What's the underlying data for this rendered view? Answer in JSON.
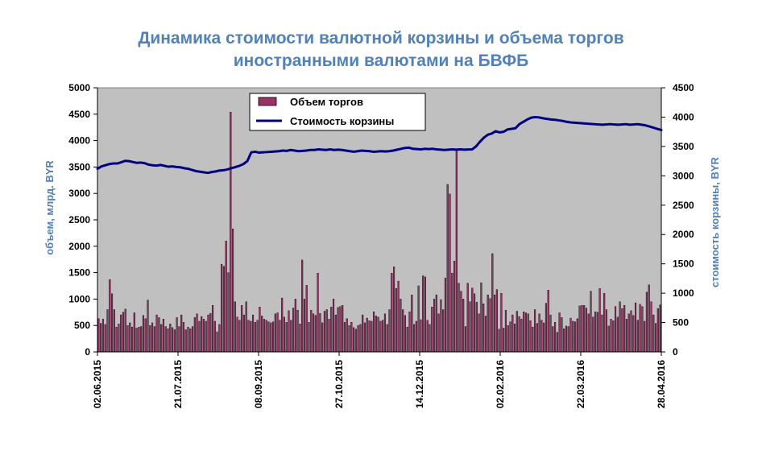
{
  "chart_data": {
    "type": "bar+line",
    "title_line1": "Динамика стоимости валютной корзины и объема торгов",
    "title_line2": "иностранными валютами на БВФБ",
    "ylabel_left": "объем, млрд. BYR",
    "ylabel_right": "стоимость корзины, BYR",
    "ylim_left": [
      0,
      5000
    ],
    "ylim_right": [
      0,
      4500
    ],
    "yticks_left": [
      "0",
      "500",
      "1000",
      "1500",
      "2000",
      "2500",
      "3000",
      "3500",
      "4000",
      "4500",
      "5000"
    ],
    "yticks_right": [
      "0",
      "500",
      "1000",
      "1500",
      "2000",
      "2500",
      "3000",
      "3500",
      "4000",
      "4500"
    ],
    "x_tick_labels": [
      "02.06.2015",
      "21.07.2015",
      "08.09.2015",
      "27.10.2015",
      "14.12.2015",
      "02.02.2016",
      "22.03.2016",
      "28.04.2016"
    ],
    "legend": {
      "bars": "Объем торгов",
      "line": "Стоимость корзины",
      "position": "top-center"
    },
    "colors": {
      "bars": "#993366",
      "bar_outline": "#000000",
      "line": "#000080",
      "plot_bg": "#c0c0c0",
      "title": "#4f81bd",
      "axis_title": "#4f81bd"
    },
    "grid": false,
    "series": [
      {
        "name": "Объем торгов",
        "axis": "left",
        "values": [
          630,
          540,
          620,
          520,
          800,
          1370,
          1100,
          800,
          470,
          530,
          700,
          750,
          810,
          500,
          550,
          470,
          740,
          450,
          470,
          480,
          690,
          630,
          980,
          500,
          550,
          480,
          700,
          650,
          520,
          620,
          480,
          440,
          530,
          460,
          420,
          650,
          480,
          700,
          560,
          420,
          470,
          440,
          480,
          650,
          720,
          580,
          670,
          620,
          580,
          700,
          730,
          880,
          580,
          380,
          520,
          1660,
          1620,
          2100,
          1500,
          4540,
          2330,
          950,
          660,
          600,
          880,
          700,
          950,
          600,
          580,
          700,
          560,
          600,
          850,
          680,
          620,
          600,
          570,
          550,
          570,
          720,
          740,
          600,
          1020,
          660,
          560,
          780,
          600,
          830,
          1000,
          790,
          530,
          1740,
          1000,
          1260,
          560,
          790,
          720,
          690,
          1490,
          730,
          550,
          770,
          800,
          620,
          850,
          1000,
          700,
          840,
          860,
          880,
          560,
          630,
          500,
          560,
          460,
          430,
          500,
          520,
          700,
          550,
          640,
          590,
          580,
          760,
          680,
          660,
          580,
          600,
          720,
          520,
          800,
          1490,
          1610,
          1200,
          1340,
          1000,
          800,
          690,
          470,
          760,
          1080,
          520,
          580,
          1250,
          610,
          1440,
          1420,
          600,
          520,
          850,
          1000,
          1080,
          720,
          990,
          800,
          1400,
          3170,
          2990,
          1490,
          1720,
          3830,
          1300,
          1150,
          1000,
          480,
          1300,
          950,
          1210,
          1100,
          940,
          720,
          1310,
          910,
          680,
          1080,
          1010,
          1860,
          1080,
          1180,
          430,
          1110,
          450,
          790,
          500,
          570,
          700,
          530,
          770,
          670,
          620,
          760,
          740,
          720,
          590,
          470,
          800,
          540,
          720,
          600,
          550,
          920,
          1170,
          700,
          480,
          560,
          370,
          740,
          650,
          440,
          490,
          480,
          640,
          580,
          570,
          630,
          870,
          880,
          880,
          830,
          720,
          1150,
          660,
          760,
          750,
          1200,
          700,
          1110,
          800,
          490,
          620,
          590,
          860,
          660,
          950,
          820,
          880,
          620,
          720,
          780,
          690,
          930,
          600,
          900,
          860,
          580,
          1130,
          1270,
          950,
          700,
          540,
          820,
          890
        ]
      },
      {
        "name": "Стоимость корзины",
        "axis": "right",
        "values": [
          3120,
          3160,
          3180,
          3200,
          3210,
          3210,
          3230,
          3255,
          3250,
          3235,
          3220,
          3225,
          3215,
          3190,
          3180,
          3175,
          3185,
          3170,
          3155,
          3160,
          3150,
          3145,
          3130,
          3120,
          3100,
          3080,
          3070,
          3060,
          3050,
          3065,
          3075,
          3090,
          3095,
          3110,
          3130,
          3150,
          3170,
          3200,
          3250,
          3400,
          3410,
          3395,
          3400,
          3405,
          3410,
          3415,
          3420,
          3430,
          3425,
          3440,
          3430,
          3420,
          3425,
          3430,
          3440,
          3440,
          3450,
          3445,
          3440,
          3450,
          3440,
          3445,
          3440,
          3430,
          3420,
          3410,
          3420,
          3430,
          3425,
          3420,
          3410,
          3415,
          3420,
          3415,
          3420,
          3430,
          3445,
          3460,
          3475,
          3480,
          3460,
          3455,
          3450,
          3460,
          3455,
          3460,
          3450,
          3445,
          3440,
          3445,
          3450,
          3445,
          3450,
          3445,
          3448,
          3450,
          3500,
          3580,
          3650,
          3700,
          3720,
          3760,
          3740,
          3750,
          3790,
          3800,
          3810,
          3880,
          3920,
          3960,
          3990,
          4000,
          3995,
          3980,
          3970,
          3960,
          3955,
          3945,
          3935,
          3920,
          3910,
          3905,
          3900,
          3895,
          3890,
          3885,
          3880,
          3875,
          3870,
          3875,
          3880,
          3875,
          3870,
          3875,
          3880,
          3870,
          3875,
          3880,
          3870,
          3860,
          3840,
          3820,
          3800,
          3780
        ]
      }
    ]
  }
}
